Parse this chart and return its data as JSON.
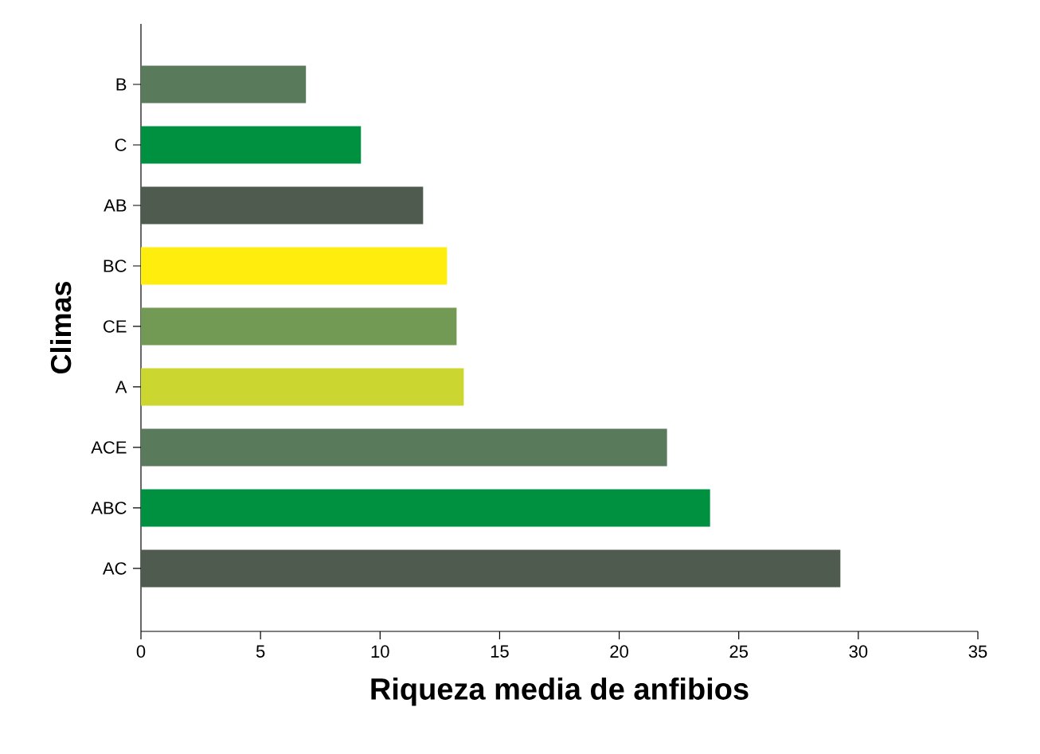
{
  "chart_data": {
    "type": "bar",
    "orientation": "horizontal",
    "xlabel": "Riqueza media de anfibios",
    "ylabel": "Climas",
    "categories": [
      "B",
      "C",
      "AB",
      "BC",
      "CE",
      "A",
      "ACE",
      "ABC",
      "AC"
    ],
    "values": [
      6.9,
      9.2,
      11.8,
      12.8,
      13.2,
      13.5,
      22.0,
      23.8,
      29.25
    ],
    "colors": [
      "#5a7a5c",
      "#009140",
      "#4f5b4e",
      "#ffed0d",
      "#729a54",
      "#cbd630",
      "#5a7a5c",
      "#009140",
      "#4f5b4e"
    ],
    "xlim": [
      0,
      35
    ],
    "xticks": [
      0,
      5,
      10,
      15,
      20,
      25,
      30,
      35
    ]
  }
}
